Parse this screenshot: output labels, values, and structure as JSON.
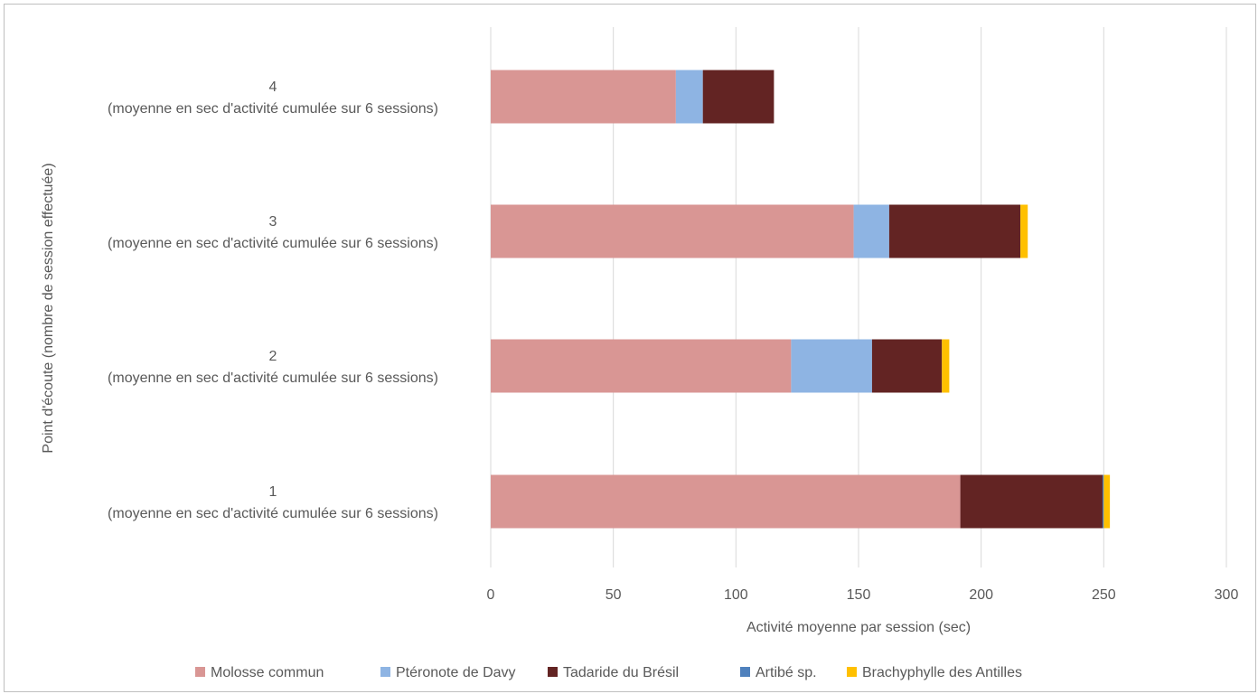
{
  "chart_data": {
    "type": "bar",
    "orientation": "horizontal",
    "stacked": true,
    "categories": [
      [
        "1",
        "(moyenne en sec d'activité cumulée sur 6 sessions)"
      ],
      [
        "2",
        "(moyenne en sec d'activité cumulée sur 6 sessions)"
      ],
      [
        "3",
        "(moyenne en sec d'activité cumulée sur 6 sessions)"
      ],
      [
        "4",
        "(moyenne en sec d'activité cumulée sur 6 sessions)"
      ]
    ],
    "series": [
      {
        "name": "Molosse commun",
        "color": "#d99694",
        "values": [
          191.5,
          122.5,
          148,
          75.5
        ]
      },
      {
        "name": "Ptéronote de Davy",
        "color": "#8eb4e3",
        "values": [
          0,
          33,
          14.5,
          11
        ]
      },
      {
        "name": "Tadaride du Brésil",
        "color": "#632423",
        "values": [
          58,
          28.5,
          53.5,
          29
        ]
      },
      {
        "name": "Artibé sp.",
        "color": "#4f81bd",
        "values": [
          0.5,
          0,
          0,
          0
        ]
      },
      {
        "name": "Brachyphylle des Antilles",
        "color": "#ffc000",
        "values": [
          2.5,
          3,
          3,
          0
        ]
      }
    ],
    "xlabel": "Activité moyenne par session (sec)",
    "ylabel": "Point d'écoute (nombre de session effectuée)",
    "xlim": [
      0,
      300
    ],
    "xticks": [
      0,
      50,
      100,
      150,
      200,
      250,
      300
    ],
    "grid": true,
    "legend": "bottom"
  }
}
